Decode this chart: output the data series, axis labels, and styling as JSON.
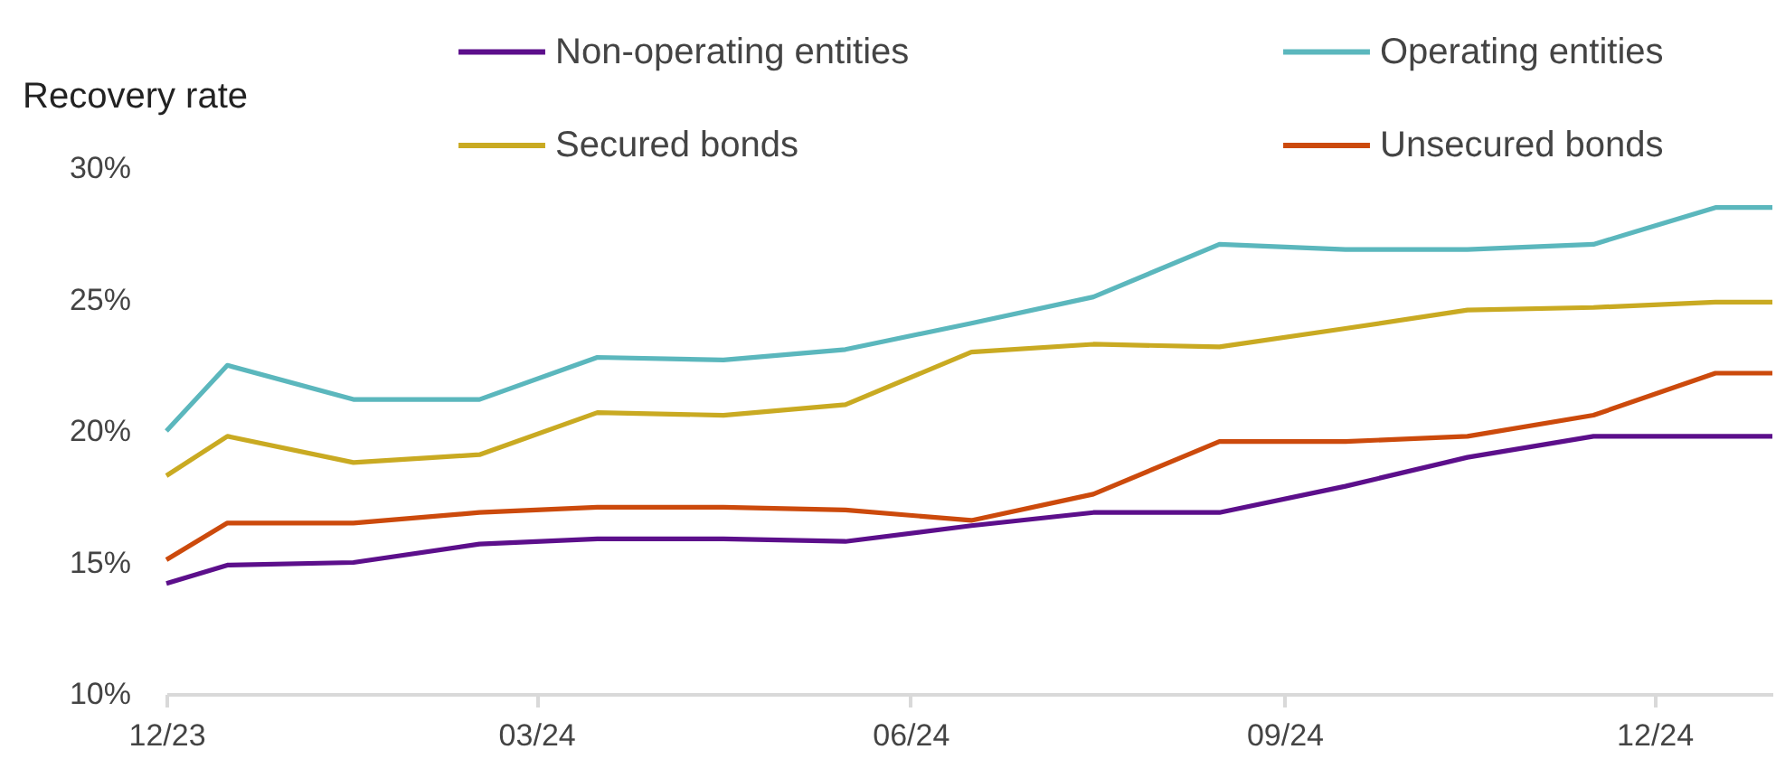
{
  "chart_data": {
    "type": "line",
    "ylabel": "Recovery rate",
    "x": [
      "2023-12-01",
      "2023-12-16",
      "2024-01-16",
      "2024-02-16",
      "2024-03-16",
      "2024-04-16",
      "2024-05-16",
      "2024-06-16",
      "2024-07-16",
      "2024-08-16",
      "2024-09-16",
      "2024-10-16",
      "2024-11-16",
      "2024-12-16",
      "2024-12-30"
    ],
    "series": [
      {
        "name": "Non-operating entities",
        "color": "#5c0f8b",
        "values": [
          14.2,
          14.9,
          15.0,
          15.7,
          15.9,
          15.9,
          15.8,
          16.4,
          16.9,
          16.9,
          17.9,
          19.0,
          19.8,
          19.8,
          19.8
        ]
      },
      {
        "name": "Operating entities",
        "color": "#5bb7bd",
        "values": [
          20.0,
          22.5,
          21.2,
          21.2,
          22.8,
          22.7,
          23.1,
          24.1,
          25.1,
          27.1,
          26.9,
          26.9,
          27.1,
          28.5,
          28.5
        ]
      },
      {
        "name": "Secured bonds",
        "color": "#c9aa22",
        "values": [
          18.3,
          19.8,
          18.8,
          19.1,
          20.7,
          20.6,
          21.0,
          23.0,
          23.3,
          23.2,
          23.9,
          24.6,
          24.7,
          24.9,
          24.9
        ]
      },
      {
        "name": "Unsecured bonds",
        "color": "#cc4a0c",
        "values": [
          15.1,
          16.5,
          16.5,
          16.9,
          17.1,
          17.1,
          17.0,
          16.6,
          17.6,
          19.6,
          19.6,
          19.8,
          20.6,
          22.2,
          22.2
        ]
      }
    ],
    "xlim": [
      "2023-12-01",
      "2024-12-30"
    ],
    "xticks": [
      {
        "value": "2023-12-01",
        "label": "12/23"
      },
      {
        "value": "2024-03-01",
        "label": "03/24"
      },
      {
        "value": "2024-06-01",
        "label": "06/24"
      },
      {
        "value": "2024-09-01",
        "label": "09/24"
      },
      {
        "value": "2024-12-01",
        "label": "12/24"
      }
    ],
    "ylim": [
      10,
      30
    ],
    "yticks": [
      {
        "value": 10,
        "label": "10%"
      },
      {
        "value": 15,
        "label": "15%"
      },
      {
        "value": 20,
        "label": "20%"
      },
      {
        "value": 25,
        "label": "25%"
      },
      {
        "value": 30,
        "label": "30%"
      }
    ],
    "grid": false,
    "legend": "top",
    "marker": "none",
    "line_style": "solid"
  }
}
